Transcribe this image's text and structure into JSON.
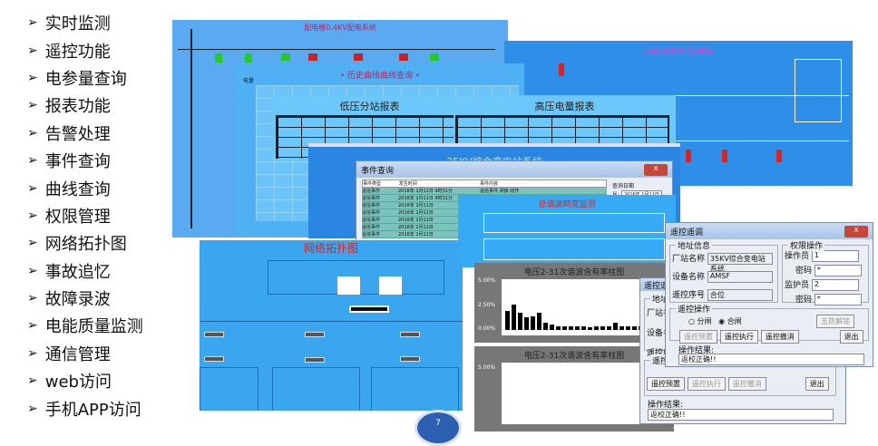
{
  "bullets": [
    "实时监测",
    "遥控功能",
    "电参量查询",
    "报表功能",
    "告警处理",
    "事件查询",
    "曲线查询",
    "权限管理",
    "网络拓扑图",
    "事故追忆",
    "故障录波",
    "电能质量监测",
    "通信管理",
    "web访问",
    "手机APP访问"
  ],
  "bullet_icon": "arrow-right-icon",
  "panels": {
    "dist04": {
      "title": "配电楼0.4KV配电系统"
    },
    "sub35": {
      "title": "35KV综合变电站系统"
    },
    "history": {
      "title": "• 历史曲线曲线查询 •",
      "y_label": "电量"
    },
    "low_report": {
      "title": "低压分站报表"
    },
    "high_report": {
      "title": "高压电量报表"
    },
    "sub35b": {
      "title": "35KV综合变电站系统"
    },
    "event": {
      "title": "事件查询",
      "columns": [
        "事件类型",
        "发生时间",
        "事件内容"
      ],
      "rows": [
        [
          "遥信事件",
          "2016年 1月11日 9时31分",
          "遥信事件 闭锁 动作"
        ],
        [
          "遥信事件",
          "2016年 1月11日 9时31分",
          "通讯事件 通讯正常 Inter-PC 工作正常"
        ],
        [
          "遥信事件",
          "2016年 1月11日",
          ""
        ],
        [
          "遥信事件",
          "2016年 1月11日",
          ""
        ],
        [
          "遥信事件",
          "2016年 1月11日",
          ""
        ],
        [
          "遥信事件",
          "2016年 1月11日",
          ""
        ],
        [
          "遥信事件",
          "2016年 1月11日",
          ""
        ]
      ],
      "query_label": "查询日期",
      "from_label": "从:",
      "from_value": "2016年 1月11日"
    },
    "harmonic": {
      "title": "总谐波畸变监测"
    },
    "network": {
      "title": "网络拓扑图"
    },
    "chart1": {
      "title": "电压2-31次谐波含有率柱图",
      "yticks": [
        "5.00%",
        "2.50%",
        "0.00%"
      ],
      "values": [
        2.0,
        2.7,
        1.8,
        1.3,
        1.4,
        1.8,
        0.8,
        0.6,
        0.4,
        0.4,
        0.4,
        0.4,
        0.4,
        0.3,
        0.4,
        0.4,
        0.4,
        0.8,
        0.4,
        0.4,
        0.4,
        0.4,
        0.3,
        0.3,
        0.5
      ]
    },
    "chart2": {
      "title": "电压2-31次谐波含有率柱图",
      "yticks": [
        "5.00%"
      ]
    }
  },
  "dialog_front": {
    "title": "遥控遥调",
    "close": "x",
    "addr_group": "地址信息",
    "station_label": "厂站名称",
    "station_value": "35KV综合变电站系统",
    "device_label": "设备名称",
    "device_value": "AMSF",
    "seq_label": "遥控序号",
    "seq_value": "合位",
    "perm_group": "权限操作",
    "operator_label": "操作员",
    "operator_value": "1",
    "pwd_label": "密码",
    "pwd_value": "*",
    "guardian_label": "监护员",
    "guardian_value": "2",
    "pwd2_value": "*",
    "op_group": "遥控操作",
    "open_label": "分闸",
    "close_label": "合闸",
    "selected": "合闸",
    "preset": "遥控预置",
    "execute": "遥控执行",
    "cancel": "遥控撤消",
    "unlock": "五防解锁",
    "exit": "退出",
    "result_label": "操作结果:",
    "result_value": "返校正确!!"
  },
  "dialog_back": {
    "title": "遥控遥调",
    "addr_group": "地址信",
    "station_label": "厂站名",
    "device_label": "设备名",
    "seq_label": "遥控序",
    "op_group": "遥控操",
    "preset": "遥控预置",
    "execute": "遥控执行",
    "cancel": "遥控撤消",
    "exit": "退出",
    "result_label": "操作结果:",
    "result_value": "返校正确!!"
  },
  "page_number": "7",
  "colors": {
    "panel_blue": "#3a9ff0",
    "light_blue": "#6cc3f7",
    "dialog": "#e9eef5"
  }
}
